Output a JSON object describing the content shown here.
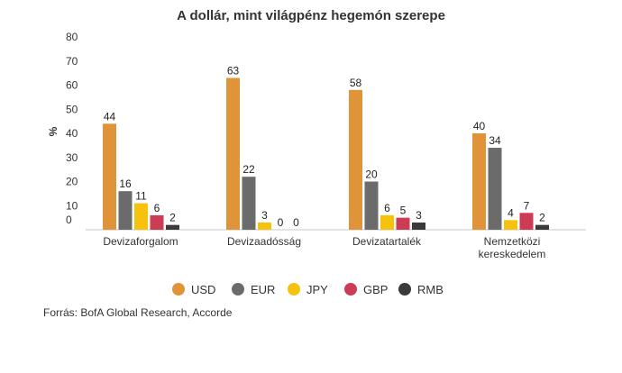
{
  "chart_data": {
    "type": "bar",
    "title": "A dollár, mint világpénz hegemón szerepe",
    "ylabel": "%",
    "ylim": [
      0,
      80
    ],
    "yticks": [
      0,
      10,
      20,
      30,
      40,
      50,
      60,
      70,
      80
    ],
    "grid": false,
    "legend_position": "bottom",
    "categories": [
      [
        "Devizaforgalom"
      ],
      [
        "Devizaadósság"
      ],
      [
        "Devizatartalék"
      ],
      [
        "Nemzetközi",
        "kereskedelem"
      ]
    ],
    "series": [
      {
        "name": "USD",
        "color": "#E0943A",
        "values": [
          44,
          63,
          58,
          40
        ]
      },
      {
        "name": "EUR",
        "color": "#6B6B6B",
        "values": [
          16,
          22,
          20,
          34
        ]
      },
      {
        "name": "JPY",
        "color": "#F7C20E",
        "values": [
          11,
          3,
          6,
          4
        ]
      },
      {
        "name": "GBP",
        "color": "#CC3D55",
        "values": [
          6,
          0,
          5,
          7
        ]
      },
      {
        "name": "RMB",
        "color": "#3A3A3A",
        "values": [
          2,
          0,
          3,
          2
        ]
      }
    ]
  },
  "source": "Forrás: BofA Global Research, Accorde"
}
